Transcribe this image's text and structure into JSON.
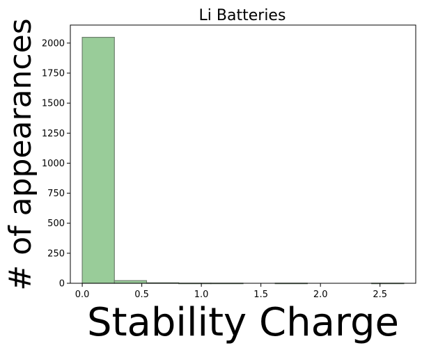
{
  "chart_data": {
    "type": "bar",
    "title": "Li Batteries",
    "xlabel": "Stability Charge",
    "ylabel": "# of appearances",
    "xlim": [
      -0.1,
      2.8
    ],
    "ylim": [
      0,
      2150
    ],
    "xticks": [
      "0.0",
      "0.5",
      "1.0",
      "1.5",
      "2.0",
      "2.5"
    ],
    "yticks": [
      "0",
      "250",
      "500",
      "750",
      "1000",
      "1250",
      "1500",
      "1750",
      "2000"
    ],
    "bins": [
      {
        "x0": 0.0,
        "x1": 0.27,
        "count": 2048
      },
      {
        "x0": 0.27,
        "x1": 0.54,
        "count": 22
      },
      {
        "x0": 0.54,
        "x1": 0.81,
        "count": 4
      },
      {
        "x0": 0.81,
        "x1": 1.08,
        "count": 1
      },
      {
        "x0": 1.08,
        "x1": 1.35,
        "count": 1
      },
      {
        "x0": 1.35,
        "x1": 1.62,
        "count": 0
      },
      {
        "x0": 1.62,
        "x1": 1.89,
        "count": 1
      },
      {
        "x0": 1.89,
        "x1": 2.16,
        "count": 0
      },
      {
        "x0": 2.16,
        "x1": 2.43,
        "count": 0
      },
      {
        "x0": 2.43,
        "x1": 2.7,
        "count": 1
      }
    ],
    "bar_color": "#99cc99",
    "edge_color": "#6e7f6e",
    "grid": false,
    "legend": false
  }
}
